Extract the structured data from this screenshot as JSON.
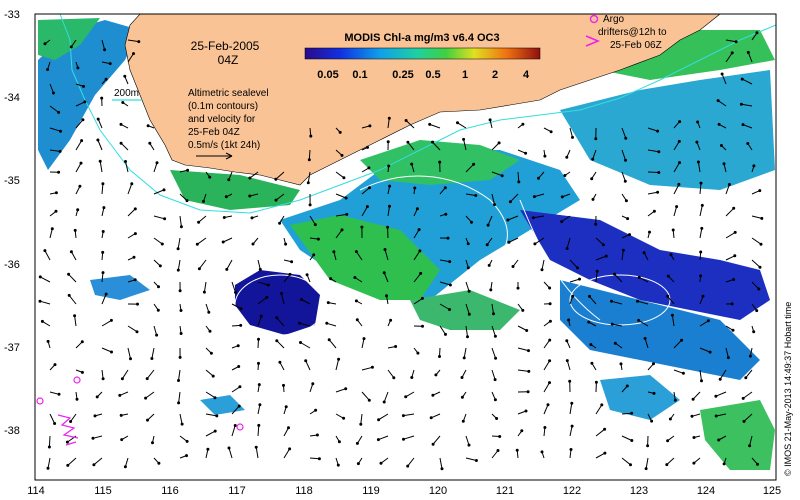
{
  "map": {
    "date_line1": "25-Feb-2005",
    "date_line2": "04Z",
    "colorbar_title": "MODIS Chl-a mg/m3 v6.4 OC3",
    "colorbar_ticks": [
      "0.05",
      "0.1",
      "0.25",
      "0.5",
      "1",
      "2",
      "4"
    ],
    "isobath_label": "200m",
    "legend_lines": [
      "Altimetric sealevel",
      "(0.1m contours)",
      "and velocity for",
      "25-Feb 04Z",
      "0.5m/s (1kt 24h)"
    ],
    "argo_lines": [
      "Argo",
      "drifters@12h to",
      "25-Feb 06Z"
    ],
    "side_credit": "© IMOS 21-May-2013 14:49:37 Hobart time",
    "lat_ticks": [
      "-33",
      "-34",
      "-35",
      "-36",
      "-37",
      "-38"
    ],
    "lon_ticks": [
      "114",
      "115",
      "116",
      "117",
      "118",
      "119",
      "120",
      "121",
      "122",
      "123",
      "124",
      "125"
    ]
  },
  "colors": {
    "land": "#f9c396",
    "isobath": "#33dddd",
    "argo": "#ee22ee",
    "chl_low": "#1c1cb0",
    "chl_mid": "#1fa6d8",
    "chl_high": "#22bb55"
  }
}
